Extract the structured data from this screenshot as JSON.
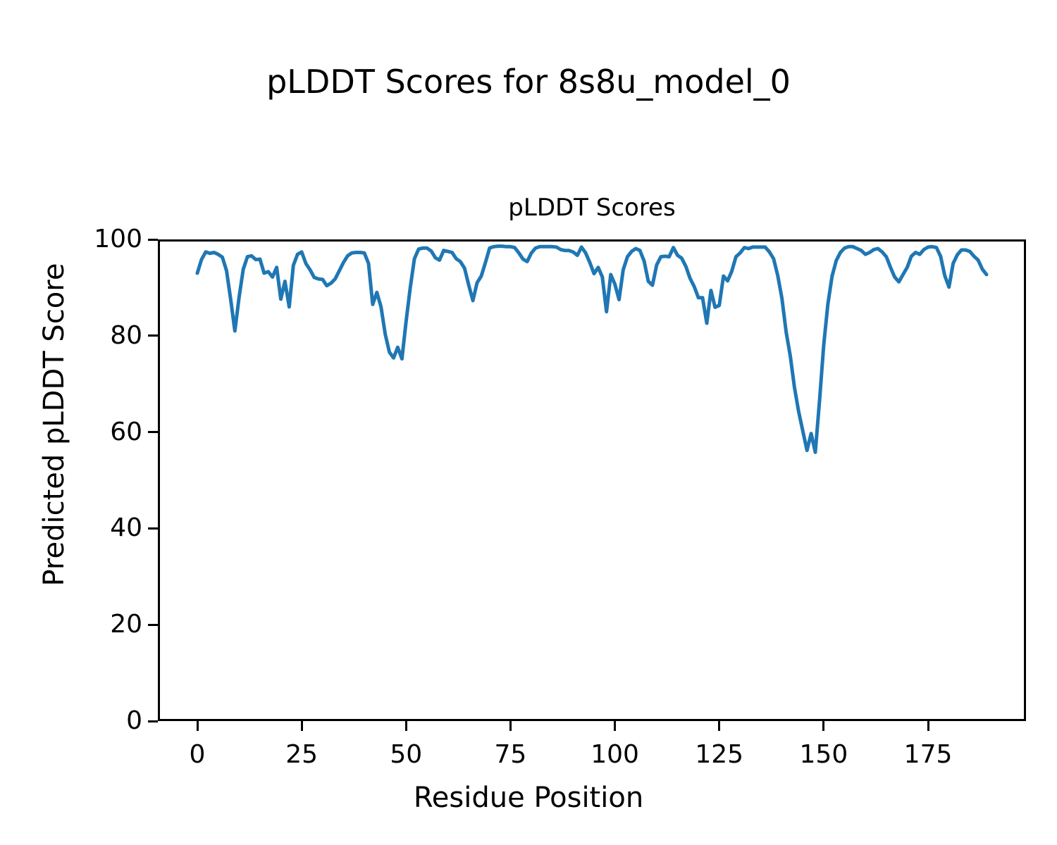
{
  "figure": {
    "suptitle": "pLDDT Scores for 8s8u_model_0",
    "background_color": "#ffffff",
    "text_color": "#000000"
  },
  "chart_data": {
    "type": "line",
    "title": "pLDDT Scores",
    "xlabel": "Residue Position",
    "ylabel": "Predicted pLDDT Score",
    "legend": "none",
    "grid": false,
    "line_color": "#1f77b4",
    "line_width": 5,
    "x_start": 0,
    "x_step": 1,
    "xlim": [
      -9.45,
      198.45
    ],
    "ylim": [
      0,
      100
    ],
    "x_ticks": [
      0,
      25,
      50,
      75,
      100,
      125,
      150,
      175
    ],
    "y_ticks": [
      0,
      20,
      40,
      60,
      80,
      100
    ],
    "values": [
      93.0,
      95.8,
      97.4,
      97.1,
      97.3,
      96.9,
      96.3,
      93.5,
      87.5,
      81.0,
      88.0,
      93.8,
      96.4,
      96.6,
      95.8,
      95.9,
      93.0,
      93.3,
      92.2,
      94.2,
      87.6,
      91.3,
      86.0,
      94.6,
      96.9,
      97.4,
      95.0,
      93.7,
      92.1,
      91.8,
      91.7,
      90.4,
      90.9,
      91.8,
      93.5,
      95.2,
      96.6,
      97.2,
      97.3,
      97.3,
      97.2,
      95.0,
      86.5,
      89.0,
      86.0,
      80.3,
      76.6,
      75.4,
      77.6,
      75.2,
      83.0,
      90.0,
      96.0,
      98.0,
      98.2,
      98.2,
      97.6,
      96.2,
      95.7,
      97.7,
      97.5,
      97.3,
      96.0,
      95.4,
      94.0,
      90.5,
      87.3,
      91.0,
      92.4,
      95.2,
      98.2,
      98.5,
      98.6,
      98.6,
      98.5,
      98.5,
      98.3,
      97.2,
      95.9,
      95.4,
      97.2,
      98.2,
      98.5,
      98.5,
      98.5,
      98.5,
      98.4,
      97.9,
      97.7,
      97.7,
      97.4,
      96.7,
      98.4,
      97.2,
      95.2,
      92.9,
      94.2,
      92.2,
      85.0,
      92.7,
      90.7,
      87.5,
      93.7,
      96.4,
      97.5,
      98.1,
      97.7,
      95.5,
      91.3,
      90.5,
      94.7,
      96.4,
      96.5,
      96.4,
      98.3,
      96.7,
      96.1,
      94.4,
      91.9,
      90.2,
      87.9,
      87.9,
      82.6,
      89.4,
      85.9,
      86.3,
      92.4,
      91.4,
      93.4,
      96.4,
      97.2,
      98.3,
      98.1,
      98.4,
      98.4,
      98.4,
      98.4,
      97.4,
      96.0,
      92.5,
      87.8,
      80.8,
      75.8,
      69.3,
      64.3,
      60.2,
      56.2,
      59.7,
      55.8,
      66.5,
      78.0,
      86.5,
      92.3,
      95.6,
      97.3,
      98.2,
      98.5,
      98.5,
      98.1,
      97.7,
      96.9,
      97.3,
      97.9,
      98.1,
      97.4,
      96.4,
      94.2,
      92.2,
      91.2,
      92.7,
      94.2,
      96.5,
      97.3,
      96.9,
      97.9,
      98.4,
      98.5,
      98.3,
      96.5,
      92.5,
      90.1,
      95.0,
      96.8,
      97.8,
      97.8,
      97.5,
      96.5,
      95.7,
      93.8,
      92.7
    ]
  }
}
